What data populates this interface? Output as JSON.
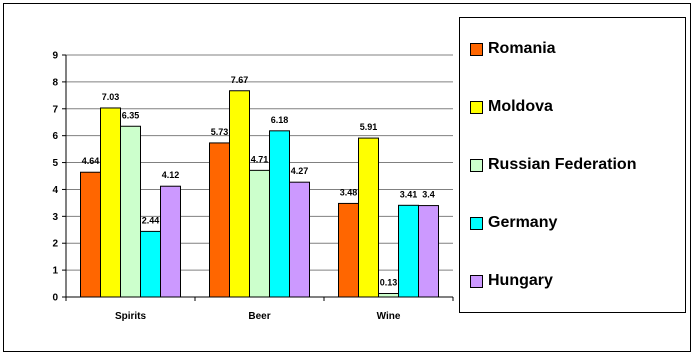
{
  "chart_data": {
    "type": "bar",
    "title": "",
    "xlabel": "",
    "ylabel": "",
    "categories": [
      "Spirits",
      "Beer",
      "Wine"
    ],
    "ylim": [
      0,
      9
    ],
    "yticks": [
      "0",
      "1",
      "2",
      "3",
      "4",
      "5",
      "6",
      "7",
      "8",
      "9"
    ],
    "grid": true,
    "legend_position": "right",
    "series": [
      {
        "name": "Romania",
        "color": "#ff6600",
        "values": [
          4.64,
          5.73,
          3.48
        ],
        "labels": [
          "4.64",
          "5.73",
          "3.48"
        ]
      },
      {
        "name": "Moldova",
        "color": "#ffff00",
        "values": [
          7.03,
          7.67,
          5.91
        ],
        "labels": [
          "7.03",
          "7.67",
          "5.91"
        ]
      },
      {
        "name": "Russian Federation",
        "color": "#ccffcc",
        "values": [
          6.35,
          4.71,
          0.13
        ],
        "labels": [
          "6.35",
          "4.71",
          "0.13"
        ]
      },
      {
        "name": "Germany",
        "color": "#00ffff",
        "values": [
          2.44,
          6.18,
          3.41
        ],
        "labels": [
          "2.44",
          "6.18",
          "3.41"
        ]
      },
      {
        "name": "Hungary",
        "color": "#cc99ff",
        "values": [
          4.12,
          4.27,
          3.4
        ],
        "labels": [
          "4.12",
          "4.27",
          "3.4"
        ]
      }
    ]
  }
}
